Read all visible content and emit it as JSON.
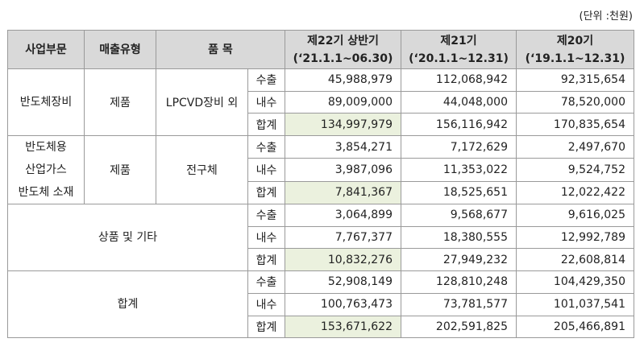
{
  "unit": "(단위 :천원)",
  "header": {
    "segment": "사업부문",
    "type": "매출유형",
    "item": "품 목",
    "periods": [
      {
        "title": "제22기 상반기",
        "range": "(‘21.1.1~06.30)"
      },
      {
        "title": "제21기",
        "range": "(‘20.1.1~12.31)"
      },
      {
        "title": "제20기",
        "range": "(‘19.1.1~12.31)"
      }
    ]
  },
  "groups": [
    {
      "segment": [
        "반도체장비"
      ],
      "type": "제품",
      "item": "LPCVD장비 외",
      "rows": [
        {
          "label": "수출",
          "values": [
            "45,988,979",
            "112,068,942",
            "92,315,654"
          ]
        },
        {
          "label": "내수",
          "values": [
            "89,009,000",
            "44,048,000",
            "78,520,000"
          ]
        },
        {
          "label": "합계",
          "values": [
            "134,997,979",
            "156,116,942",
            "170,835,654"
          ]
        }
      ]
    },
    {
      "segment": [
        "반도체용",
        "산업가스",
        "반도체 소재"
      ],
      "type": "제품",
      "item": "전구체",
      "rows": [
        {
          "label": "수출",
          "values": [
            "3,854,271",
            "7,172,629",
            "2,497,670"
          ]
        },
        {
          "label": "내수",
          "values": [
            "3,987,096",
            "11,353,022",
            "9,524,752"
          ]
        },
        {
          "label": "합계",
          "values": [
            "7,841,367",
            "18,525,651",
            "12,022,422"
          ]
        }
      ]
    },
    {
      "segment": [
        "상품 및 기타"
      ],
      "rows": [
        {
          "label": "수출",
          "values": [
            "3,064,899",
            "9,568,677",
            "9,616,025"
          ]
        },
        {
          "label": "내수",
          "values": [
            "7,767,377",
            "18,380,555",
            "12,992,789"
          ]
        },
        {
          "label": "합계",
          "values": [
            "10,832,276",
            "27,949,232",
            "22,608,814"
          ]
        }
      ]
    },
    {
      "segment": [
        "합계"
      ],
      "rows": [
        {
          "label": "수출",
          "values": [
            "52,908,149",
            "128,810,248",
            "104,429,350"
          ]
        },
        {
          "label": "내수",
          "values": [
            "100,763,473",
            "73,781,577",
            "101,037,541"
          ]
        },
        {
          "label": "합계",
          "values": [
            "153,671,622",
            "202,591,825",
            "205,466,891"
          ]
        }
      ]
    }
  ]
}
